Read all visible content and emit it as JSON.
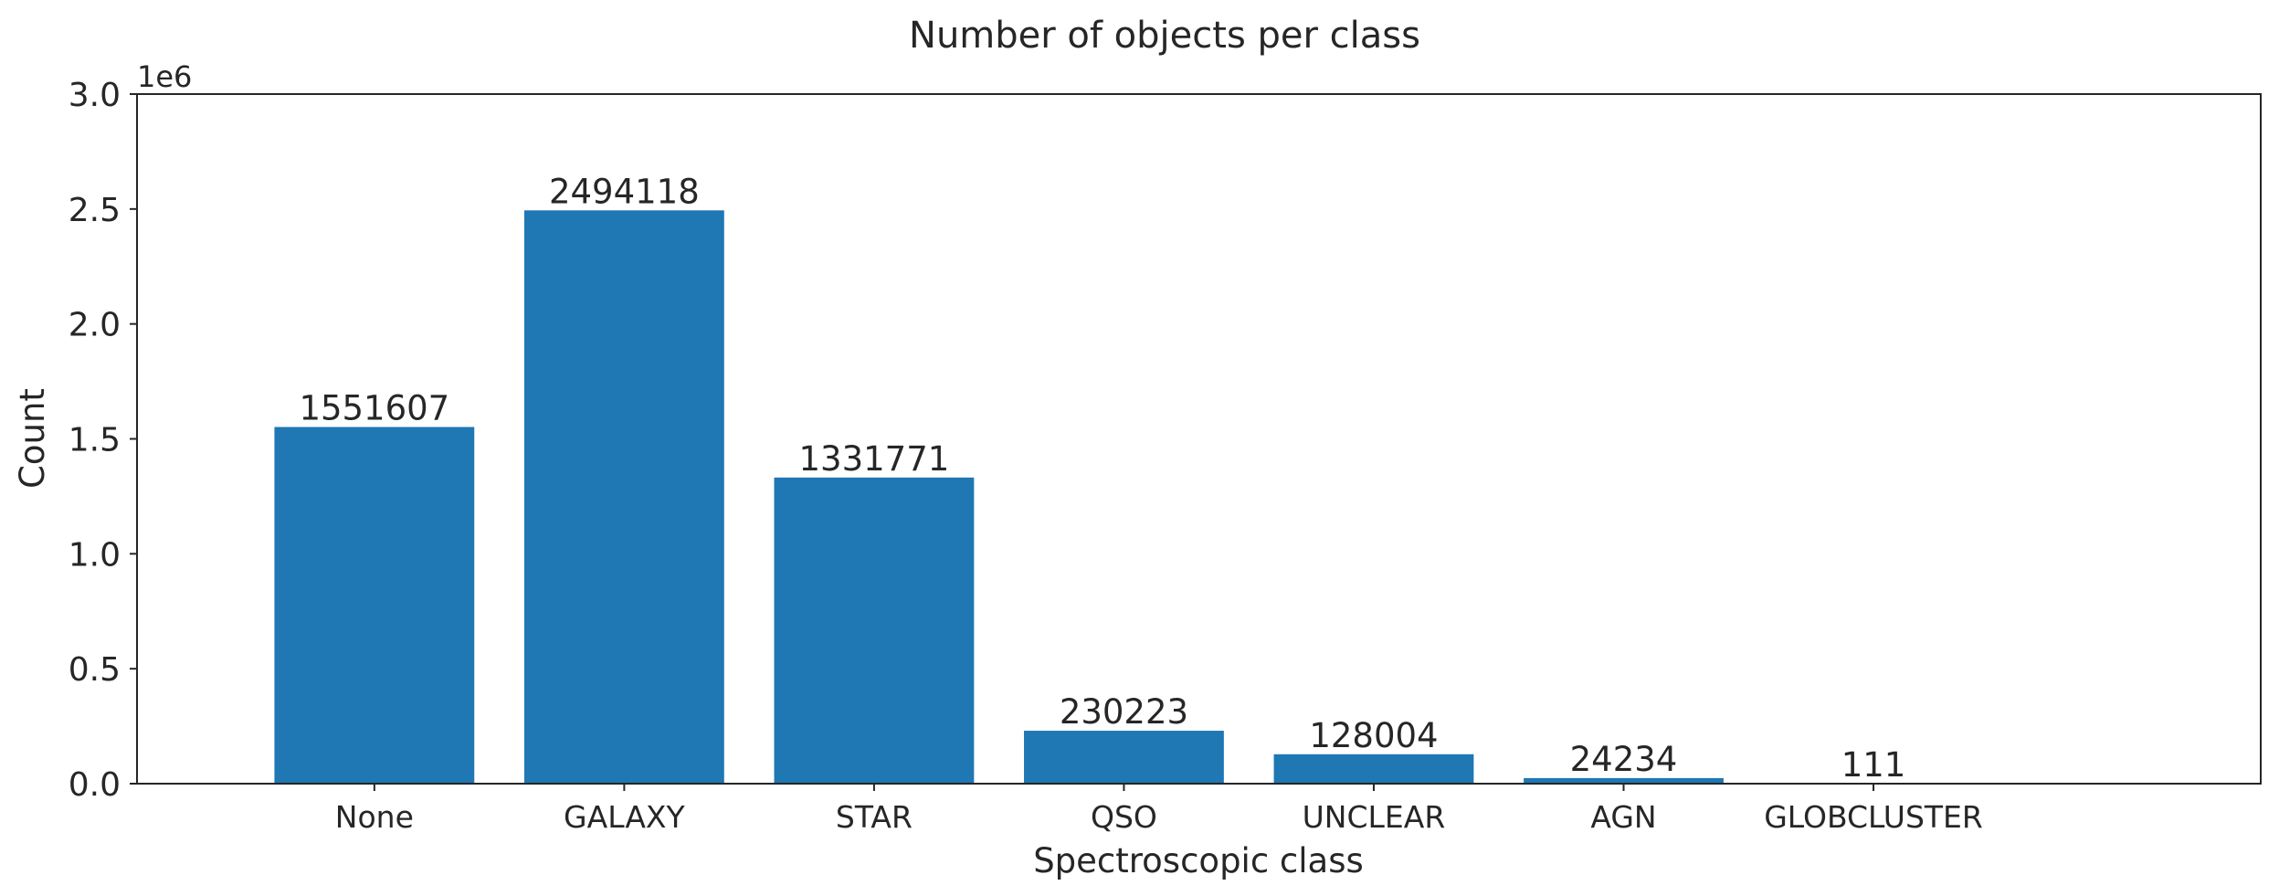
{
  "chart_data": {
    "type": "bar",
    "title": "Number of objects per class",
    "xlabel": "Spectroscopic class",
    "ylabel": "Count",
    "y_offset_label": "1e6",
    "categories": [
      "None",
      "GALAXY",
      "STAR",
      "QSO",
      "UNCLEAR",
      "AGN",
      "GLOBCLUSTER"
    ],
    "values": [
      1551607,
      2494118,
      1331771,
      230223,
      128004,
      24234,
      111
    ],
    "data_labels": [
      "1551607",
      "2494118",
      "1331771",
      "230223",
      "128004",
      "24234",
      "111"
    ],
    "ylim": [
      0,
      3000000
    ],
    "yticks": [
      0,
      500000,
      1000000,
      1500000,
      2000000,
      2500000,
      3000000
    ],
    "ytick_labels": [
      "0.0",
      "0.5",
      "1.0",
      "1.5",
      "2.0",
      "2.5",
      "3.0"
    ],
    "grid": false,
    "bar_color": "#1f77b4"
  }
}
